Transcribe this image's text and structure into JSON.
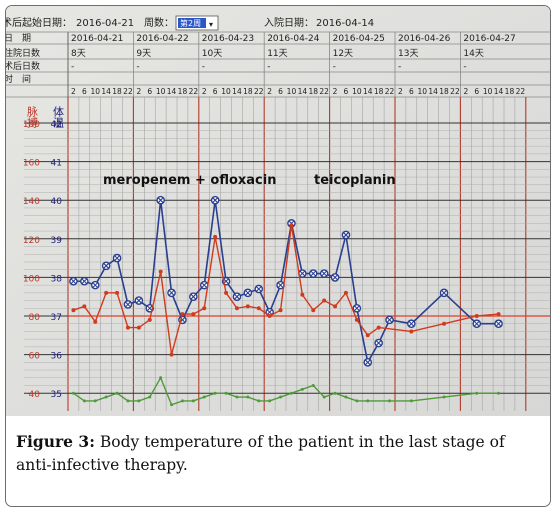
{
  "header": {
    "start_label": "术后起始日期：",
    "start_value": "2016-04-21",
    "week_label": "周数：",
    "week_value": "第2周",
    "admit_label": "入院日期：",
    "admit_value": "2016-04-14",
    "row_labels": [
      "日　期",
      "住院日数",
      "术后日数",
      "时　间"
    ],
    "dates": [
      "2016-04-21",
      "2016-04-22",
      "2016-04-23",
      "2016-04-24",
      "2016-04-25",
      "2016-04-26",
      "2016-04-27"
    ],
    "hospital_days": [
      "8天",
      "9天",
      "10天",
      "11天",
      "12天",
      "13天",
      "14天"
    ],
    "postop_days": [
      "-",
      "-",
      "-",
      "-",
      "-",
      "-",
      "-"
    ],
    "hours": [
      "2",
      "6",
      "10",
      "14",
      "18",
      "22"
    ]
  },
  "axes": {
    "pulse_title": "脉搏",
    "temp_title": "体温",
    "pulse_ticks": [
      "180",
      "160",
      "140",
      "120",
      "100",
      "80",
      "60",
      "40"
    ],
    "temp_ticks": [
      "42",
      "41",
      "40",
      "39",
      "38",
      "37",
      "36",
      "35"
    ]
  },
  "annotations": {
    "drugs_1": "meropenem + ofloxacin",
    "drugs_2": "teicoplanin"
  },
  "colors": {
    "temperature": "#2a3f8f",
    "pulse": "#d23a1e",
    "respiration": "#4f9a3a",
    "red_line": "#d9412a"
  },
  "chart_data": {
    "type": "line",
    "x_unit": "date / hour slot (2,6,10,14,18,22)",
    "x_categories": [
      "2016-04-21",
      "2016-04-22",
      "2016-04-23",
      "2016-04-24",
      "2016-04-25",
      "2016-04-26",
      "2016-04-27"
    ],
    "temp_ylim": [
      35,
      42
    ],
    "pulse_ylim": [
      40,
      180
    ],
    "series": [
      {
        "name": "temperature",
        "points": [
          [
            1,
            37.9
          ],
          [
            2,
            37.9
          ],
          [
            3,
            37.8
          ],
          [
            4,
            38.3
          ],
          [
            5,
            38.5
          ],
          [
            6,
            37.3
          ],
          [
            7,
            37.4
          ],
          [
            8,
            37.2
          ],
          [
            9,
            40.0
          ],
          [
            10,
            37.6
          ],
          [
            11,
            36.9
          ],
          [
            12,
            37.5
          ],
          [
            13,
            37.8
          ],
          [
            14,
            40.0
          ],
          [
            15,
            37.9
          ],
          [
            16,
            37.5
          ],
          [
            17,
            37.6
          ],
          [
            18,
            37.7
          ],
          [
            19,
            37.1
          ],
          [
            20,
            37.8
          ],
          [
            21,
            39.4
          ],
          [
            22,
            38.1
          ],
          [
            23,
            38.1
          ],
          [
            24,
            38.1
          ],
          [
            25,
            38.0
          ],
          [
            26,
            39.1
          ],
          [
            27,
            37.2
          ],
          [
            28,
            35.8
          ],
          [
            29,
            36.3
          ],
          [
            30,
            36.9
          ],
          [
            32,
            36.8
          ],
          [
            35,
            37.6
          ],
          [
            38,
            36.8
          ],
          [
            40,
            36.8
          ]
        ]
      },
      {
        "name": "pulse",
        "points": [
          [
            1,
            83
          ],
          [
            2,
            85
          ],
          [
            3,
            77
          ],
          [
            4,
            92
          ],
          [
            5,
            92
          ],
          [
            6,
            74
          ],
          [
            7,
            74
          ],
          [
            8,
            78
          ],
          [
            9,
            103
          ],
          [
            10,
            60
          ],
          [
            11,
            81
          ],
          [
            12,
            81
          ],
          [
            13,
            84
          ],
          [
            14,
            121
          ],
          [
            15,
            92
          ],
          [
            16,
            84
          ],
          [
            17,
            85
          ],
          [
            18,
            84
          ],
          [
            19,
            80
          ],
          [
            20,
            83
          ],
          [
            21,
            127
          ],
          [
            22,
            91
          ],
          [
            23,
            83
          ],
          [
            24,
            88
          ],
          [
            25,
            85
          ],
          [
            26,
            92
          ],
          [
            27,
            78
          ],
          [
            28,
            70
          ],
          [
            29,
            74
          ],
          [
            32,
            72
          ],
          [
            35,
            76
          ],
          [
            38,
            80
          ],
          [
            40,
            81
          ]
        ]
      },
      {
        "name": "respiration",
        "points": [
          [
            1,
            35.0
          ],
          [
            2,
            34.8
          ],
          [
            3,
            34.8
          ],
          [
            4,
            34.9
          ],
          [
            5,
            35.0
          ],
          [
            6,
            34.8
          ],
          [
            7,
            34.8
          ],
          [
            8,
            34.9
          ],
          [
            9,
            35.4
          ],
          [
            10,
            34.7
          ],
          [
            11,
            34.8
          ],
          [
            12,
            34.8
          ],
          [
            13,
            34.9
          ],
          [
            14,
            35.0
          ],
          [
            15,
            35.0
          ],
          [
            16,
            34.9
          ],
          [
            17,
            34.9
          ],
          [
            18,
            34.8
          ],
          [
            19,
            34.8
          ],
          [
            20,
            34.9
          ],
          [
            21,
            35.0
          ],
          [
            22,
            35.1
          ],
          [
            23,
            35.2
          ],
          [
            24,
            34.9
          ],
          [
            25,
            35.0
          ],
          [
            26,
            34.9
          ],
          [
            27,
            34.8
          ],
          [
            28,
            34.8
          ],
          [
            30,
            34.8
          ],
          [
            32,
            34.8
          ],
          [
            35,
            34.9
          ],
          [
            38,
            35.0
          ],
          [
            40,
            35.0
          ]
        ]
      }
    ]
  },
  "caption": {
    "label": "Figure 3:",
    "text": " Body temperature of the patient in the last stage of anti-infective therapy."
  }
}
